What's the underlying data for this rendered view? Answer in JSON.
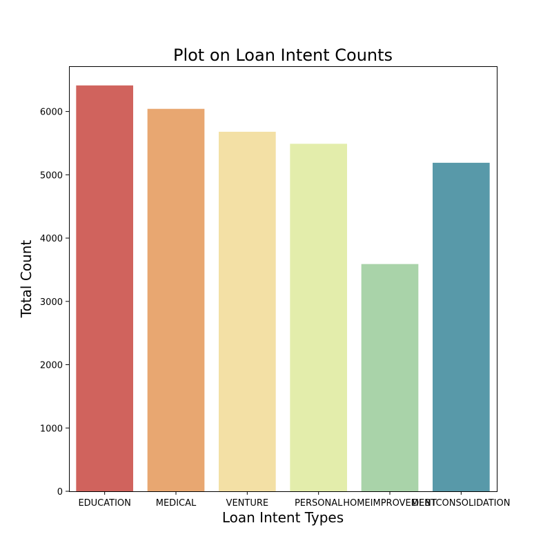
{
  "chart_data": {
    "type": "bar",
    "title": "Plot on Loan Intent Counts",
    "xlabel": "Loan Intent Types",
    "ylabel": "Total Count",
    "categories": [
      "EDUCATION",
      "MEDICAL",
      "VENTURE",
      "PERSONAL",
      "HOMEIMPROVEMENT",
      "DEBTCONSOLIDATION"
    ],
    "values": [
      6412,
      6042,
      5680,
      5490,
      3590,
      5190
    ],
    "colors": [
      "#d0635d",
      "#e8a771",
      "#f3e0a5",
      "#e3edab",
      "#a9d3a9",
      "#5899a9"
    ],
    "ylim": [
      0,
      6715
    ],
    "yticks": [
      0,
      1000,
      2000,
      3000,
      4000,
      5000,
      6000
    ],
    "grid": false,
    "legend": "none"
  }
}
